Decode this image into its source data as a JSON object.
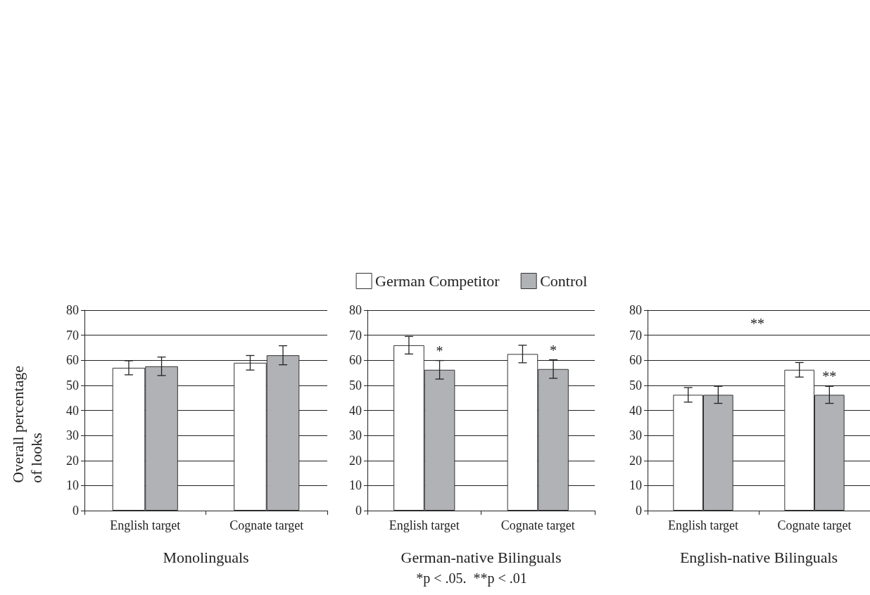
{
  "chart_data": [
    {
      "type": "bar",
      "xlabel": "Monolinguals",
      "ylabel": "Overall percentage\nof looks",
      "categories": [
        "English target",
        "Cognate target"
      ],
      "series": [
        {
          "color": "#ffffff",
          "values": [
            57,
            59
          ],
          "errors": [
            2.8,
            2.9
          ]
        },
        {
          "color": "#b1b2b6",
          "values": [
            57.6,
            62
          ],
          "errors": [
            3.7,
            3.8
          ]
        }
      ],
      "ylim": [
        0,
        80
      ],
      "yticks": [
        0,
        10,
        20,
        30,
        40,
        50,
        60,
        70,
        80
      ],
      "grid": "y",
      "legend": false
    },
    {
      "type": "bar",
      "xlabel": "German-native Bilinguals",
      "categories": [
        "English target",
        "Cognate target"
      ],
      "series": [
        {
          "name": "German Competitor",
          "color": "#ffffff",
          "values": [
            66,
            62.5
          ],
          "errors": [
            3.5,
            3.5
          ]
        },
        {
          "name": "Control",
          "color": "#b1b2b6",
          "values": [
            56.2,
            56.5
          ],
          "errors": [
            3.7,
            3.7
          ]
        }
      ],
      "ylim": [
        0,
        80
      ],
      "yticks": [
        0,
        10,
        20,
        30,
        40,
        50,
        60,
        70,
        80
      ],
      "grid": "y",
      "legend": "top",
      "annotations": [
        {
          "text": "*",
          "x": "English target",
          "y": 59.9
        },
        {
          "text": "*",
          "x": "Cognate target",
          "y": 60.2
        },
        "*p < .05.  **p < .01"
      ]
    },
    {
      "type": "bar",
      "xlabel": "English-native Bilinguals",
      "categories": [
        "English target",
        "Cognate target"
      ],
      "series": [
        {
          "color": "#ffffff",
          "values": [
            46.2,
            56.2
          ],
          "errors": [
            2.9,
            2.9
          ]
        },
        {
          "color": "#b1b2b6",
          "values": [
            46.2,
            46.2
          ],
          "errors": [
            3.4,
            3.4
          ]
        }
      ],
      "ylim": [
        0,
        80
      ],
      "yticks": [
        0,
        10,
        20,
        30,
        40,
        50,
        60,
        70,
        80
      ],
      "grid": "y",
      "legend": false,
      "annotations": [
        "**",
        {
          "text": "**",
          "x": "Cognate target",
          "y": 49.6
        }
      ]
    }
  ]
}
